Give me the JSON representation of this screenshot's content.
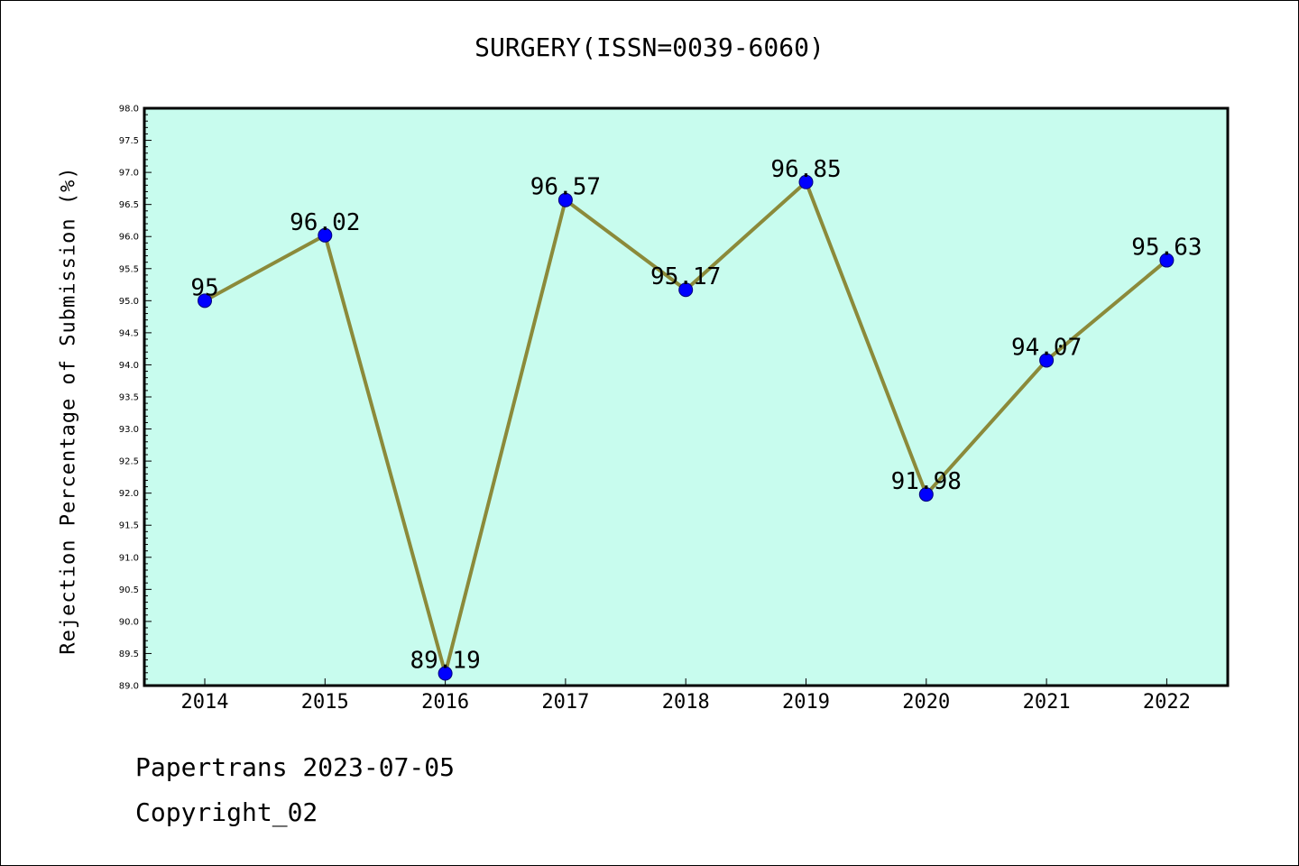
{
  "footer": {
    "line1": "Papertrans 2023-07-05",
    "line2": "Copyright_02"
  },
  "colors": {
    "plot_background": "#c8fcee",
    "line": "#8b8a3a",
    "marker": "#0000ff",
    "marker_edge": "#00007a"
  },
  "chart_data": {
    "type": "line",
    "title": "SURGERY(ISSN=0039-6060)",
    "xlabel": "",
    "ylabel": "Rejection Percentage of Submission (%)",
    "categories": [
      "2014",
      "2015",
      "2016",
      "2017",
      "2018",
      "2019",
      "2020",
      "2021",
      "2022"
    ],
    "series": [
      {
        "values": [
          95,
          96.02,
          89.19,
          96.57,
          95.17,
          96.85,
          91.98,
          94.07,
          95.63
        ],
        "labels": [
          "95",
          "96.02",
          "89.19",
          "96.57",
          "95.17",
          "96.85",
          "91.98",
          "94.07",
          "95.63"
        ]
      }
    ],
    "ylim": [
      89.0,
      98.0
    ],
    "yticks": [
      "89.0",
      "89.5",
      "90.0",
      "90.5",
      "91.0",
      "91.5",
      "92.0",
      "92.5",
      "93.0",
      "93.5",
      "94.0",
      "94.5",
      "95.0",
      "95.5",
      "96.0",
      "96.5",
      "97.0",
      "97.5",
      "98.0"
    ],
    "grid": false,
    "legend": false
  }
}
